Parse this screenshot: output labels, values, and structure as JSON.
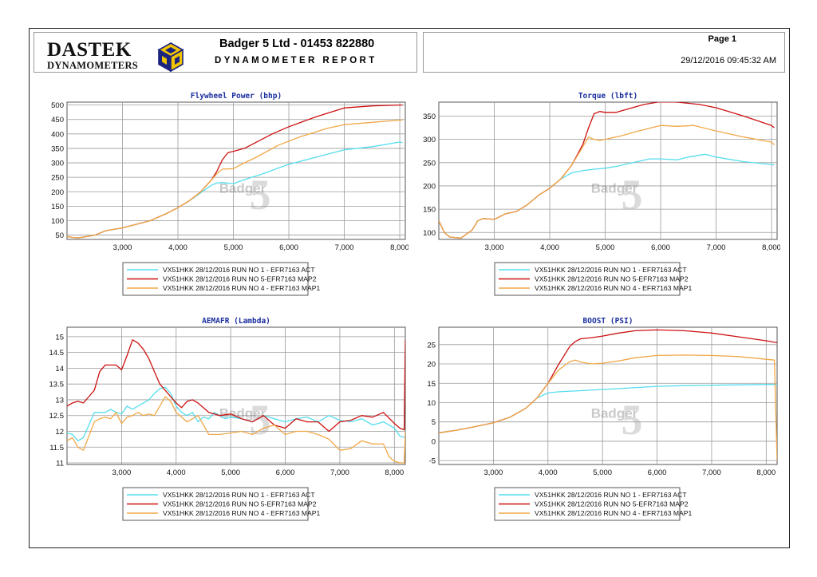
{
  "header": {
    "logo_main": "DASTEK",
    "logo_sub": "DYNAMOMETERS",
    "company": "Badger 5 Ltd - 01453 822880",
    "report_title": "DYNAMOMETER REPORT",
    "page_label": "Page 1",
    "datetime": "29/12/2016 09:45:32 AM"
  },
  "watermark": "Badger 5",
  "colors": {
    "series": [
      "#55ddee",
      "#cc1111",
      "#f0a848"
    ],
    "title": "#1a2e9e",
    "grid": "#9a9a9a"
  },
  "chart_data": [
    {
      "id": "power",
      "type": "line",
      "title": "Flywheel Power (bhp)",
      "xlim": [
        2000,
        8100
      ],
      "ylim": [
        35,
        510
      ],
      "x_ticks": [
        3000,
        4000,
        5000,
        6000,
        7000,
        8000
      ],
      "x_tick_labels": [
        "3,000",
        "4,000",
        "5,000",
        "6,000",
        "7,000",
        "8,000"
      ],
      "y_ticks": [
        50,
        100,
        150,
        200,
        250,
        300,
        350,
        400,
        450,
        500
      ],
      "y_tick_labels": [
        "50",
        "100",
        "150",
        "200",
        "250",
        "300",
        "350",
        "400",
        "450",
        "500"
      ],
      "series": [
        {
          "name": "VX51HKK 28/12/2016 RUN NO 1 - EFR7163 ACT",
          "x": [
            2000,
            2100,
            2200,
            2500,
            2700,
            3000,
            3300,
            3500,
            3800,
            4000,
            4200,
            4400,
            4600,
            4700,
            4800,
            5000,
            5200,
            5500,
            6000,
            6500,
            7000,
            7500,
            8000,
            8050
          ],
          "y": [
            45,
            42,
            40,
            50,
            65,
            75,
            90,
            100,
            125,
            145,
            168,
            195,
            222,
            230,
            232,
            228,
            242,
            260,
            295,
            320,
            345,
            356,
            372,
            370
          ]
        },
        {
          "name": "VX51HKK 28/12/2016 RUN NO 5-EFR7163 MAP2",
          "x": [
            2000,
            2100,
            2200,
            2500,
            2700,
            3000,
            3300,
            3500,
            3800,
            4000,
            4200,
            4400,
            4600,
            4700,
            4800,
            4900,
            5000,
            5200,
            5400,
            5700,
            6000,
            6500,
            7000,
            7500,
            8000,
            8050
          ],
          "y": [
            45,
            42,
            40,
            50,
            65,
            75,
            90,
            100,
            125,
            145,
            168,
            198,
            240,
            270,
            310,
            335,
            340,
            350,
            370,
            400,
            425,
            460,
            490,
            497,
            500,
            500
          ]
        },
        {
          "name": "VX51HKK 28/12/2016 RUN NO 4 - EFR7163 MAP1",
          "x": [
            2000,
            2100,
            2200,
            2500,
            2700,
            3000,
            3300,
            3500,
            3800,
            4000,
            4200,
            4400,
            4600,
            4700,
            4800,
            5000,
            5200,
            5400,
            5800,
            6200,
            6700,
            7000,
            7500,
            8000,
            8050
          ],
          "y": [
            45,
            42,
            40,
            50,
            65,
            75,
            90,
            100,
            125,
            145,
            168,
            198,
            240,
            262,
            278,
            280,
            300,
            318,
            360,
            390,
            420,
            432,
            440,
            448,
            448
          ]
        }
      ]
    },
    {
      "id": "torque",
      "type": "line",
      "title": "Torque (lbft)",
      "xlim": [
        2000,
        8100
      ],
      "ylim": [
        85,
        380
      ],
      "x_ticks": [
        3000,
        4000,
        5000,
        6000,
        7000,
        8000
      ],
      "x_tick_labels": [
        "3,000",
        "4,000",
        "5,000",
        "6,000",
        "7,000",
        "8,000"
      ],
      "y_ticks": [
        100,
        150,
        200,
        250,
        300,
        350
      ],
      "y_tick_labels": [
        "100",
        "150",
        "200",
        "250",
        "300",
        "350"
      ],
      "series": [
        {
          "name": "VX51HKK 28/12/2016 RUN NO 1 - EFR7163 ACT",
          "x": [
            2000,
            2100,
            2200,
            2400,
            2600,
            2700,
            2800,
            3000,
            3200,
            3400,
            3600,
            3800,
            4000,
            4200,
            4400,
            4600,
            4800,
            5000,
            5200,
            5500,
            5800,
            6000,
            6300,
            6500,
            6800,
            7000,
            7500,
            8000,
            8050
          ],
          "y": [
            125,
            100,
            90,
            88,
            105,
            125,
            130,
            128,
            140,
            145,
            160,
            180,
            195,
            215,
            228,
            233,
            236,
            238,
            242,
            250,
            258,
            258,
            256,
            262,
            268,
            262,
            252,
            246,
            245
          ]
        },
        {
          "name": "VX51HKK 28/12/2016 RUN NO 5-EFR7163 MAP2",
          "x": [
            2000,
            2100,
            2200,
            2400,
            2600,
            2700,
            2800,
            3000,
            3200,
            3400,
            3600,
            3800,
            4000,
            4200,
            4400,
            4600,
            4700,
            4800,
            4900,
            5000,
            5200,
            5400,
            5700,
            6000,
            6300,
            6700,
            7000,
            7500,
            8000,
            8050
          ],
          "y": [
            125,
            100,
            90,
            88,
            105,
            125,
            130,
            128,
            140,
            145,
            160,
            180,
            195,
            215,
            245,
            290,
            325,
            355,
            360,
            358,
            358,
            365,
            375,
            381,
            380,
            375,
            368,
            350,
            330,
            325
          ]
        },
        {
          "name": "VX51HKK 28/12/2016 RUN NO 4 - EFR7163 MAP1",
          "x": [
            2000,
            2100,
            2200,
            2400,
            2600,
            2700,
            2800,
            3000,
            3200,
            3400,
            3600,
            3800,
            4000,
            4200,
            4400,
            4600,
            4700,
            4800,
            4900,
            5000,
            5300,
            5600,
            6000,
            6300,
            6600,
            7000,
            7500,
            8000,
            8050
          ],
          "y": [
            125,
            100,
            90,
            88,
            105,
            125,
            130,
            128,
            140,
            145,
            160,
            180,
            195,
            215,
            245,
            285,
            305,
            300,
            298,
            300,
            308,
            318,
            330,
            328,
            330,
            318,
            305,
            294,
            288
          ]
        }
      ]
    },
    {
      "id": "afr",
      "type": "line",
      "title": "AEMAFR (Lambda)",
      "xlim": [
        2000,
        8200
      ],
      "ylim": [
        10.95,
        15.3
      ],
      "x_ticks": [
        3000,
        4000,
        5000,
        6000,
        7000,
        8000
      ],
      "x_tick_labels": [
        "3,000",
        "4,000",
        "5,000",
        "6,000",
        "7,000",
        "8,000"
      ],
      "y_ticks": [
        11,
        11.5,
        12,
        12.5,
        13,
        13.5,
        14,
        14.5,
        15
      ],
      "y_tick_labels": [
        "11",
        "11.5",
        "12",
        "12.5",
        "13",
        "13.5",
        "14",
        "14.5",
        "15"
      ],
      "series": [
        {
          "name": "VX51HKK 28/12/2016 RUN NO 1 - EFR7163 ACT",
          "x": [
            2000,
            2100,
            2200,
            2300,
            2400,
            2500,
            2600,
            2700,
            2800,
            2900,
            3000,
            3100,
            3200,
            3300,
            3400,
            3500,
            3600,
            3700,
            3800,
            3900,
            4000,
            4100,
            4200,
            4300,
            4400,
            4500,
            4600,
            4700,
            4800,
            4900,
            5000,
            5200,
            5400,
            5600,
            5800,
            6000,
            6200,
            6400,
            6600,
            6800,
            7000,
            7200,
            7400,
            7600,
            7800,
            7900,
            8000,
            8100,
            8200
          ],
          "y": [
            11.95,
            11.9,
            11.7,
            11.8,
            12.2,
            12.6,
            12.6,
            12.6,
            12.7,
            12.6,
            12.55,
            12.8,
            12.7,
            12.8,
            12.9,
            13.0,
            13.2,
            13.35,
            13.4,
            13.2,
            12.8,
            12.6,
            12.5,
            12.6,
            12.3,
            12.45,
            12.4,
            12.6,
            12.5,
            12.4,
            12.45,
            12.4,
            12.3,
            12.5,
            12.4,
            12.3,
            12.4,
            12.45,
            12.3,
            12.5,
            12.35,
            12.3,
            12.4,
            12.2,
            12.3,
            12.2,
            12.1,
            11.85,
            11.8
          ]
        },
        {
          "name": "VX51HKK 28/12/2016 RUN NO 5-EFR7163 MAP2",
          "x": [
            2000,
            2100,
            2200,
            2300,
            2400,
            2500,
            2600,
            2700,
            2800,
            2900,
            3000,
            3100,
            3200,
            3300,
            3400,
            3500,
            3600,
            3700,
            3800,
            3900,
            4000,
            4100,
            4200,
            4300,
            4400,
            4600,
            4800,
            5000,
            5200,
            5400,
            5600,
            5800,
            6000,
            6200,
            6400,
            6600,
            6800,
            7000,
            7200,
            7400,
            7600,
            7800,
            8000,
            8100,
            8180,
            8200
          ],
          "y": [
            12.8,
            12.9,
            12.95,
            12.9,
            13.1,
            13.3,
            13.9,
            14.1,
            14.1,
            14.1,
            13.95,
            14.4,
            14.9,
            14.8,
            14.6,
            14.3,
            13.9,
            13.5,
            13.3,
            13.1,
            12.9,
            12.75,
            12.95,
            13.0,
            12.9,
            12.6,
            12.5,
            12.55,
            12.4,
            12.3,
            12.5,
            12.2,
            12.1,
            12.4,
            12.3,
            12.3,
            12.0,
            12.3,
            12.35,
            12.5,
            12.45,
            12.6,
            12.25,
            12.1,
            12.05,
            14.9
          ]
        },
        {
          "name": "VX51HKK 28/12/2016 RUN NO 4 - EFR7163 MAP1",
          "x": [
            2000,
            2100,
            2200,
            2300,
            2400,
            2500,
            2600,
            2700,
            2800,
            2900,
            3000,
            3100,
            3200,
            3300,
            3400,
            3500,
            3600,
            3700,
            3800,
            3900,
            4000,
            4200,
            4400,
            4600,
            4800,
            5000,
            5200,
            5400,
            5600,
            5800,
            6000,
            6200,
            6400,
            6600,
            6800,
            7000,
            7200,
            7400,
            7600,
            7800,
            7900,
            8000,
            8100,
            8180,
            8200
          ],
          "y": [
            11.7,
            11.8,
            11.5,
            11.4,
            11.85,
            12.3,
            12.4,
            12.45,
            12.4,
            12.6,
            12.25,
            12.45,
            12.5,
            12.6,
            12.5,
            12.55,
            12.5,
            12.8,
            13.1,
            12.95,
            12.6,
            12.3,
            12.5,
            11.9,
            11.9,
            11.95,
            12.0,
            11.9,
            12.1,
            12.2,
            11.9,
            12.0,
            12.0,
            11.9,
            11.75,
            11.4,
            11.45,
            11.7,
            11.6,
            11.6,
            11.2,
            11.05,
            11.0,
            11.0,
            12.0
          ]
        }
      ]
    },
    {
      "id": "boost",
      "type": "line",
      "title": "BOOST (PSI)",
      "xlim": [
        2000,
        8200
      ],
      "ylim": [
        -6,
        29.5
      ],
      "x_ticks": [
        3000,
        4000,
        5000,
        6000,
        7000,
        8000
      ],
      "x_tick_labels": [
        "3,000",
        "4,000",
        "5,000",
        "6,000",
        "7,000",
        "8,000"
      ],
      "y_ticks": [
        -5,
        0,
        5,
        10,
        15,
        20,
        25
      ],
      "y_tick_labels": [
        "-5",
        "0",
        "5",
        "10",
        "15",
        "20",
        "25"
      ],
      "series": [
        {
          "name": "VX51HKK 28/12/2016 RUN NO 1 - EFR7163 ACT",
          "x": [
            2000,
            2300,
            2600,
            3000,
            3300,
            3600,
            3800,
            4000,
            4200,
            4500,
            5000,
            5500,
            6000,
            6500,
            7000,
            7500,
            8000,
            8200
          ],
          "y": [
            2.2,
            2.8,
            3.6,
            4.8,
            6.2,
            8.6,
            11.2,
            12.5,
            12.8,
            13.0,
            13.4,
            13.8,
            14.2,
            14.4,
            14.5,
            14.6,
            14.7,
            14.7
          ]
        },
        {
          "name": "VX51HKK 28/12/2016 RUN NO 5-EFR7163 MAP2",
          "x": [
            2000,
            2300,
            2600,
            3000,
            3300,
            3600,
            3800,
            4000,
            4200,
            4400,
            4500,
            4600,
            4800,
            5000,
            5300,
            5600,
            6000,
            6500,
            7000,
            7500,
            8000,
            8200
          ],
          "y": [
            2.2,
            2.8,
            3.6,
            4.8,
            6.2,
            8.6,
            11.2,
            15.0,
            20.0,
            24.5,
            25.8,
            26.5,
            26.8,
            27.2,
            28.0,
            28.6,
            28.8,
            28.6,
            28.0,
            27.0,
            26.0,
            25.5
          ]
        },
        {
          "name": "VX51HKK 28/12/2016 RUN NO 4 - EFR7163 MAP1",
          "x": [
            2000,
            2300,
            2600,
            3000,
            3300,
            3600,
            3800,
            4000,
            4200,
            4400,
            4500,
            4600,
            4800,
            5000,
            5300,
            5600,
            6000,
            6500,
            7000,
            7500,
            8000,
            8150,
            8200
          ],
          "y": [
            2.2,
            2.8,
            3.6,
            4.8,
            6.2,
            8.6,
            11.2,
            15.0,
            18.5,
            20.6,
            21.0,
            20.5,
            20.0,
            20.2,
            20.8,
            21.6,
            22.2,
            22.3,
            22.2,
            21.9,
            21.2,
            21.0,
            -5.0
          ]
        }
      ]
    }
  ]
}
